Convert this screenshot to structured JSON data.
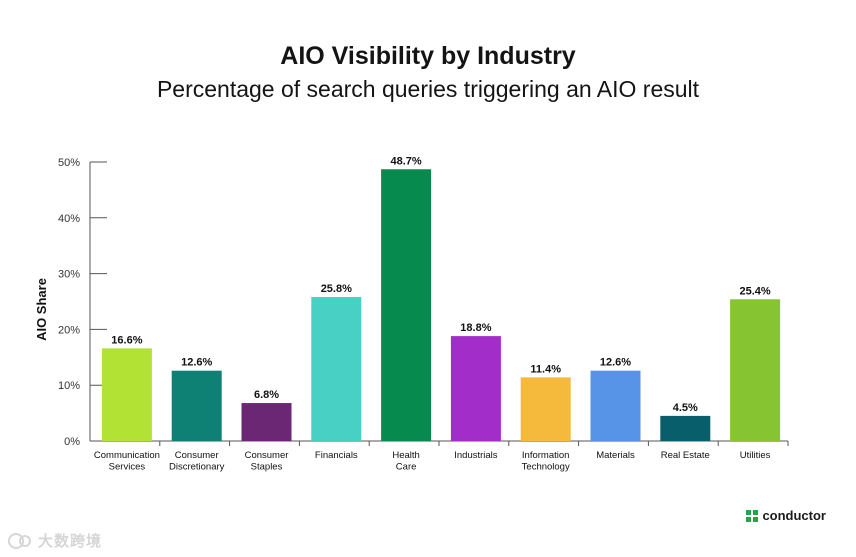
{
  "header": {
    "title": "AIO Visibility by Industry",
    "subtitle": "Percentage of search queries triggering an AIO result"
  },
  "brand": {
    "name": "conductor",
    "icon": "conductor-logo-icon",
    "color": "#22a648"
  },
  "watermark": {
    "text": "大数跨境",
    "icon": "watermark-logo-icon"
  },
  "chart_data": {
    "type": "bar",
    "title": "AIO Visibility by Industry",
    "subtitle": "Percentage of search queries triggering an AIO result",
    "xlabel": "",
    "ylabel": "AIO Share",
    "ylim": [
      0,
      50
    ],
    "yticks": [
      0,
      10,
      20,
      30,
      40,
      50
    ],
    "ytick_labels": [
      "0%",
      "10%",
      "20%",
      "30%",
      "40%",
      "50%"
    ],
    "grid": false,
    "categories": [
      [
        "Communication",
        "Services"
      ],
      [
        "Consumer",
        "Discretionary"
      ],
      [
        "Consumer",
        "Staples"
      ],
      [
        "Financials"
      ],
      [
        "Health",
        "Care"
      ],
      [
        "Industrials"
      ],
      [
        "Information",
        "Technology"
      ],
      [
        "Materials"
      ],
      [
        "Real Estate"
      ],
      [
        "Utilities"
      ]
    ],
    "values": [
      16.6,
      12.6,
      6.8,
      25.8,
      48.7,
      18.8,
      11.4,
      12.6,
      4.5,
      25.4
    ],
    "value_labels": [
      "16.6%",
      "12.6%",
      "6.8%",
      "25.8%",
      "48.7%",
      "18.8%",
      "11.4%",
      "12.6%",
      "4.5%",
      "25.4%"
    ],
    "colors": [
      "#b2e234",
      "#0e8174",
      "#6b2674",
      "#48d0c4",
      "#078a4e",
      "#a32dc8",
      "#f5b93b",
      "#5794e8",
      "#095e6b",
      "#86c531"
    ]
  }
}
